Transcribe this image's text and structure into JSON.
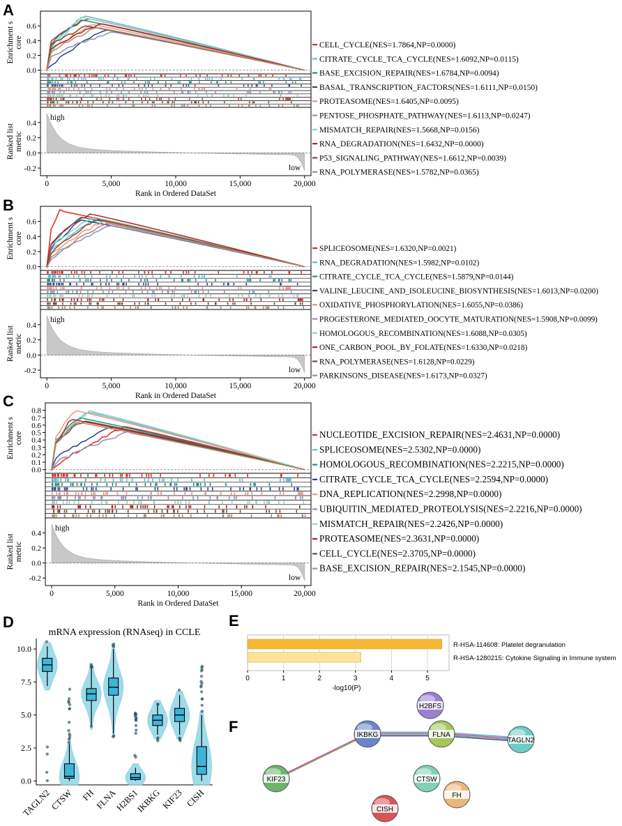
{
  "chart_data": [
    {
      "panel": "A",
      "type": "line",
      "title": "",
      "ylabel_es": "Enrichment score",
      "ylabel_es_lines": [
        "Enrichment s",
        "core"
      ],
      "ylabel_metric_lines": [
        "Ranked list",
        "metric"
      ],
      "xlabel": "Rank in Ordered DataSet",
      "x_ticks": [
        "0",
        "5,000",
        "10,000",
        "15,000",
        "20,000"
      ],
      "x_tick_values": [
        0,
        5000,
        10000,
        15000,
        20000
      ],
      "xlim": [
        -500,
        20500
      ],
      "es_ylim": [
        -0.05,
        0.8
      ],
      "es_ticks": [
        "0.0",
        "0.2",
        "0.4",
        "0.6"
      ],
      "es_tick_values": [
        0,
        0.2,
        0.4,
        0.6
      ],
      "metric_ylim": [
        -0.3,
        0.6
      ],
      "metric_ticks": [
        "0.4",
        "0.2",
        "0.0",
        "-0.2"
      ],
      "metric_tick_values": [
        0.4,
        0.2,
        0.0,
        -0.2
      ],
      "high_label": "high",
      "low_label": "low",
      "series": [
        {
          "name": "CELL_CYCLE(NES=1.7864,NP=0.0000)",
          "color": "#e8231e",
          "peak_x": 3200,
          "peak_y": 0.7,
          "start_y": 0.35
        },
        {
          "name": "CITRATE_CYCLE_TCA_CYCLE(NES=1.6092,NP=0.0115)",
          "color": "#5bbcd6",
          "peak_x": 2800,
          "peak_y": 0.74,
          "start_y": 0.2
        },
        {
          "name": "BASE_EXCISION_REPAIR(NES=1.6784,NP=0.0094)",
          "color": "#178f7f",
          "peak_x": 2700,
          "peak_y": 0.68,
          "start_y": 0.3
        },
        {
          "name": "BASAL_TRANSCRIPTION_FACTORS(NES=1.6111,NP=0.0150)",
          "color": "#2c3f8c",
          "peak_x": 4500,
          "peak_y": 0.55,
          "start_y": 0.0
        },
        {
          "name": "PROTEASOME(NES=1.6405,NP=0.0095)",
          "color": "#f0927e",
          "peak_x": 3500,
          "peak_y": 0.62,
          "start_y": 0.2
        },
        {
          "name": "PENTOSE_PHOSPHATE_PATHWAY(NES=1.6113,NP=0.0247)",
          "color": "#8b8fbf",
          "peak_x": 5000,
          "peak_y": 0.52,
          "start_y": 0.15
        },
        {
          "name": "MISMATCH_REPAIR(NES=1.5668,NP=0.0156)",
          "color": "#8fd3c2",
          "peak_x": 2600,
          "peak_y": 0.72,
          "start_y": 0.1
        },
        {
          "name": "RNA_DEGRADATION(NES=1.6432,NP=0.0000)",
          "color": "#b22222",
          "peak_x": 4200,
          "peak_y": 0.63,
          "start_y": 0.25
        },
        {
          "name": "P53_SIGNALING_PATHWAY(NES=1.6612,NP=0.0039)",
          "color": "#7a4b2e",
          "peak_x": 3000,
          "peak_y": 0.6,
          "start_y": 0.28
        },
        {
          "name": "RNA_POLYMERASE(NES=1.5782,NP=0.0365)",
          "color": "#b08a6a",
          "peak_x": 3800,
          "peak_y": 0.58,
          "start_y": 0.18
        }
      ]
    },
    {
      "panel": "B",
      "type": "line",
      "title": "",
      "ylabel_es": "Enrichment score",
      "ylabel_es_lines": [
        "Enrichment s",
        "core"
      ],
      "ylabel_metric_lines": [
        "Ranked list",
        "metric"
      ],
      "xlabel": "Rank in Ordered DataSet",
      "x_ticks": [
        "0",
        "5,000",
        "10,000",
        "15,000",
        "20,000"
      ],
      "x_tick_values": [
        0,
        5000,
        10000,
        15000,
        20000
      ],
      "xlim": [
        -500,
        20500
      ],
      "es_ylim": [
        -0.05,
        0.8
      ],
      "es_ticks": [
        "0.0",
        "0.2",
        "0.4",
        "0.6"
      ],
      "es_tick_values": [
        0,
        0.2,
        0.4,
        0.6
      ],
      "metric_ylim": [
        -0.3,
        0.6
      ],
      "metric_ticks": [
        "0.4",
        "0.2",
        "0.0",
        "-0.2"
      ],
      "metric_tick_values": [
        0.4,
        0.2,
        0.0,
        -0.2
      ],
      "high_label": "high",
      "low_label": "low",
      "series": [
        {
          "name": "SPLICEOSOME(NES=1.6320,NP=0.0021)",
          "color": "#e8231e",
          "peak_x": 1000,
          "peak_y": 0.74,
          "start_y": 0.35
        },
        {
          "name": "RNA_DEGRADATION(NES=1.5982,NP=0.0102)",
          "color": "#5bbcd6",
          "peak_x": 4000,
          "peak_y": 0.64,
          "start_y": 0.15
        },
        {
          "name": "CITRATE_CYCLE_TCA_CYCLE(NES=1.5879,NP=0.0144)",
          "color": "#178f7f",
          "peak_x": 2500,
          "peak_y": 0.66,
          "start_y": 0.2
        },
        {
          "name": "VALINE_LEUCINE_AND_ISOLEUCINE_BIOSYNTHESIS(NES=1.6013,NP=0.0200)",
          "color": "#2c3f8c",
          "peak_x": 2600,
          "peak_y": 0.62,
          "start_y": 0.15
        },
        {
          "name": "OXIDATIVE_PHOSPHORYLATION(NES=1.6055,NP=0.0386)",
          "color": "#f0927e",
          "peak_x": 4300,
          "peak_y": 0.6,
          "start_y": 0.1
        },
        {
          "name": "PROGESTERONE_MEDIATED_OOCYTE_MATURATION(NES=1.5908,NP=0.0099)",
          "color": "#8b8fbf",
          "peak_x": 4800,
          "peak_y": 0.55,
          "start_y": 0.05
        },
        {
          "name": "HOMOLOGOUS_RECOMBINATION(NES=1.6088,NP=0.0305)",
          "color": "#8fd3c2",
          "peak_x": 3500,
          "peak_y": 0.66,
          "start_y": 0.2
        },
        {
          "name": "ONE_CARBON_POOL_BY_FOLATE(NES=1.6330,NP=0.0218)",
          "color": "#b22222",
          "peak_x": 3300,
          "peak_y": 0.7,
          "start_y": 0.25
        },
        {
          "name": "RNA_POLYMERASE(NES=1.6128,NP=0.0229)",
          "color": "#7a4b2e",
          "peak_x": 3800,
          "peak_y": 0.63,
          "start_y": 0.1
        },
        {
          "name": "PARKINSONS_DISEASE(NES=1.6173,NP=0.0327)",
          "color": "#b08a6a",
          "peak_x": 4500,
          "peak_y": 0.58,
          "start_y": 0.05
        }
      ]
    },
    {
      "panel": "C",
      "type": "line",
      "title": "",
      "ylabel_es": "Enrichment score",
      "ylabel_es_lines": [
        "Enrichment s",
        "core"
      ],
      "ylabel_metric_lines": [
        "Ranked list",
        "metric"
      ],
      "xlabel": "Rank in Ordered DataSet",
      "x_ticks": [
        "0",
        "5,000",
        "10,000",
        "15,000",
        "20,000"
      ],
      "x_tick_values": [
        0,
        5000,
        10000,
        15000,
        20000
      ],
      "xlim": [
        -500,
        20500
      ],
      "es_ylim": [
        -0.05,
        0.9
      ],
      "es_ticks": [
        "0.0",
        "0.1",
        "0.2",
        "0.3",
        "0.4",
        "0.5",
        "0.6",
        "0.7",
        "0.8"
      ],
      "es_tick_values": [
        0,
        0.1,
        0.2,
        0.3,
        0.4,
        0.5,
        0.6,
        0.7,
        0.8
      ],
      "metric_ylim": [
        -0.3,
        0.6
      ],
      "metric_ticks": [
        "0.4",
        "0.2",
        "0.0",
        "-0.2"
      ],
      "metric_tick_values": [
        0.4,
        0.2,
        0.0,
        -0.2
      ],
      "high_label": "high",
      "low_label": "low",
      "series": [
        {
          "name": "NUCLEOTIDE_EXCISION_REPAIR(NES=2.4631,NP=0.0000)",
          "color": "#e8231e",
          "peak_x": 5800,
          "peak_y": 0.58,
          "start_y": 0.0
        },
        {
          "name": "SPLICEOSOME(NES=2.5302,NP=0.0000)",
          "color": "#5bbcd6",
          "peak_x": 2800,
          "peak_y": 0.78,
          "start_y": 0.25
        },
        {
          "name": "HOMOLOGOUS_RECOMBINATION(NES=2.2215,NP=0.0000)",
          "color": "#178f7f",
          "peak_x": 2200,
          "peak_y": 0.7,
          "start_y": 0.3
        },
        {
          "name": "CITRATE_CYCLE_TCA_CYCLE(NES=2.2594,NP=0.0000)",
          "color": "#2c3f8c",
          "peak_x": 4800,
          "peak_y": 0.58,
          "start_y": 0.1
        },
        {
          "name": "DNA_REPLICATION(NES=2.2998,NP=0.0000)",
          "color": "#f0927e",
          "peak_x": 1800,
          "peak_y": 0.8,
          "start_y": 0.3
        },
        {
          "name": "UBIQUITIN_MEDIATED_PROTEOLYSIS(NES=2.2216,NP=0.0000)",
          "color": "#8b8fbf",
          "peak_x": 6000,
          "peak_y": 0.5,
          "start_y": 0.05
        },
        {
          "name": "MISMATCH_REPAIR(NES=2.2426,NP=0.0000)",
          "color": "#8fd3c2",
          "peak_x": 3000,
          "peak_y": 0.79,
          "start_y": 0.3
        },
        {
          "name": "PROTEASOME(NES=2.3631,NP=0.0000)",
          "color": "#b22222",
          "peak_x": 1500,
          "peak_y": 0.68,
          "start_y": 0.2
        },
        {
          "name": "CELL_CYCLE(NES=2.3705,NP=0.0000)",
          "color": "#7a4b2e",
          "peak_x": 2500,
          "peak_y": 0.66,
          "start_y": 0.3
        },
        {
          "name": "BASE_EXCISION_REPAIR(NES=2.1545,NP=0.0000)",
          "color": "#b08a6a",
          "peak_x": 2000,
          "peak_y": 0.64,
          "start_y": 0.25
        }
      ]
    },
    {
      "panel": "D",
      "type": "box",
      "title": "mRNA expression (RNAseq) in CCLE",
      "categories": [
        "TAGLN2",
        "CTSW",
        "FH",
        "FLNA",
        "H2BS1",
        "IKBKG",
        "KIF23",
        "CISH"
      ],
      "ylim": [
        -0.3,
        10.8
      ],
      "y_ticks": [
        "0.0",
        "2.5",
        "5.0",
        "7.5",
        "10.0"
      ],
      "y_tick_values": [
        0,
        2.5,
        5,
        7.5,
        10
      ],
      "boxes": [
        {
          "q1": 8.3,
          "median": 8.8,
          "q3": 9.3,
          "whisker_low": 7.2,
          "whisker_high": 10.2
        },
        {
          "q1": 0.2,
          "median": 0.35,
          "q3": 1.3,
          "whisker_low": 0.0,
          "whisker_high": 2.8
        },
        {
          "q1": 6.1,
          "median": 6.6,
          "q3": 7.0,
          "whisker_low": 4.2,
          "whisker_high": 8.6
        },
        {
          "q1": 6.5,
          "median": 7.1,
          "q3": 7.8,
          "whisker_low": 3.6,
          "whisker_high": 10.0
        },
        {
          "q1": 0.1,
          "median": 0.25,
          "q3": 0.55,
          "whisker_low": 0.0,
          "whisker_high": 1.0
        },
        {
          "q1": 4.2,
          "median": 4.6,
          "q3": 5.0,
          "whisker_low": 3.5,
          "whisker_high": 5.8
        },
        {
          "q1": 4.5,
          "median": 5.0,
          "q3": 5.5,
          "whisker_low": 3.5,
          "whisker_high": 6.5
        },
        {
          "q1": 0.5,
          "median": 1.1,
          "q3": 2.6,
          "whisker_low": 0.0,
          "whisker_high": 5.0
        }
      ]
    },
    {
      "panel": "E",
      "type": "bar",
      "orientation": "horizontal",
      "categories": [
        "R-HSA-114608: Platelet degranulation",
        "R-HSA-1280215: Cytokine Signaling in Immune system"
      ],
      "values": [
        5.4,
        3.15
      ],
      "colors": [
        "#f7b731",
        "#fde49a"
      ],
      "xlabel": "-log10(P)",
      "xlim": [
        0,
        5.6
      ],
      "x_ticks": [
        "0",
        "1",
        "2",
        "3",
        "4",
        "5"
      ],
      "x_tick_values": [
        0,
        1,
        2,
        3,
        4,
        5
      ]
    }
  ],
  "panel_labels": {
    "A": "A",
    "B": "B",
    "C": "C",
    "D": "D",
    "E": "E",
    "F": "F"
  },
  "network": {
    "nodes": [
      {
        "label": "H2BFS",
        "color": "#9b7fd4"
      },
      {
        "label": "IKBKG",
        "color": "#6a86c8"
      },
      {
        "label": "FLNA",
        "color": "#a3c75a"
      },
      {
        "label": "TAGLN2",
        "color": "#6ccdc8"
      },
      {
        "label": "KIF23",
        "color": "#6bb56b"
      },
      {
        "label": "CTSW",
        "color": "#7ed0b6"
      },
      {
        "label": "FH",
        "color": "#e8b87a"
      },
      {
        "label": "CISH",
        "color": "#d9535a"
      }
    ],
    "edges": [
      {
        "from": "IKBKG",
        "to": "FLNA"
      },
      {
        "from": "FLNA",
        "to": "TAGLN2"
      },
      {
        "from": "KIF23",
        "to": "IKBKG"
      }
    ]
  }
}
